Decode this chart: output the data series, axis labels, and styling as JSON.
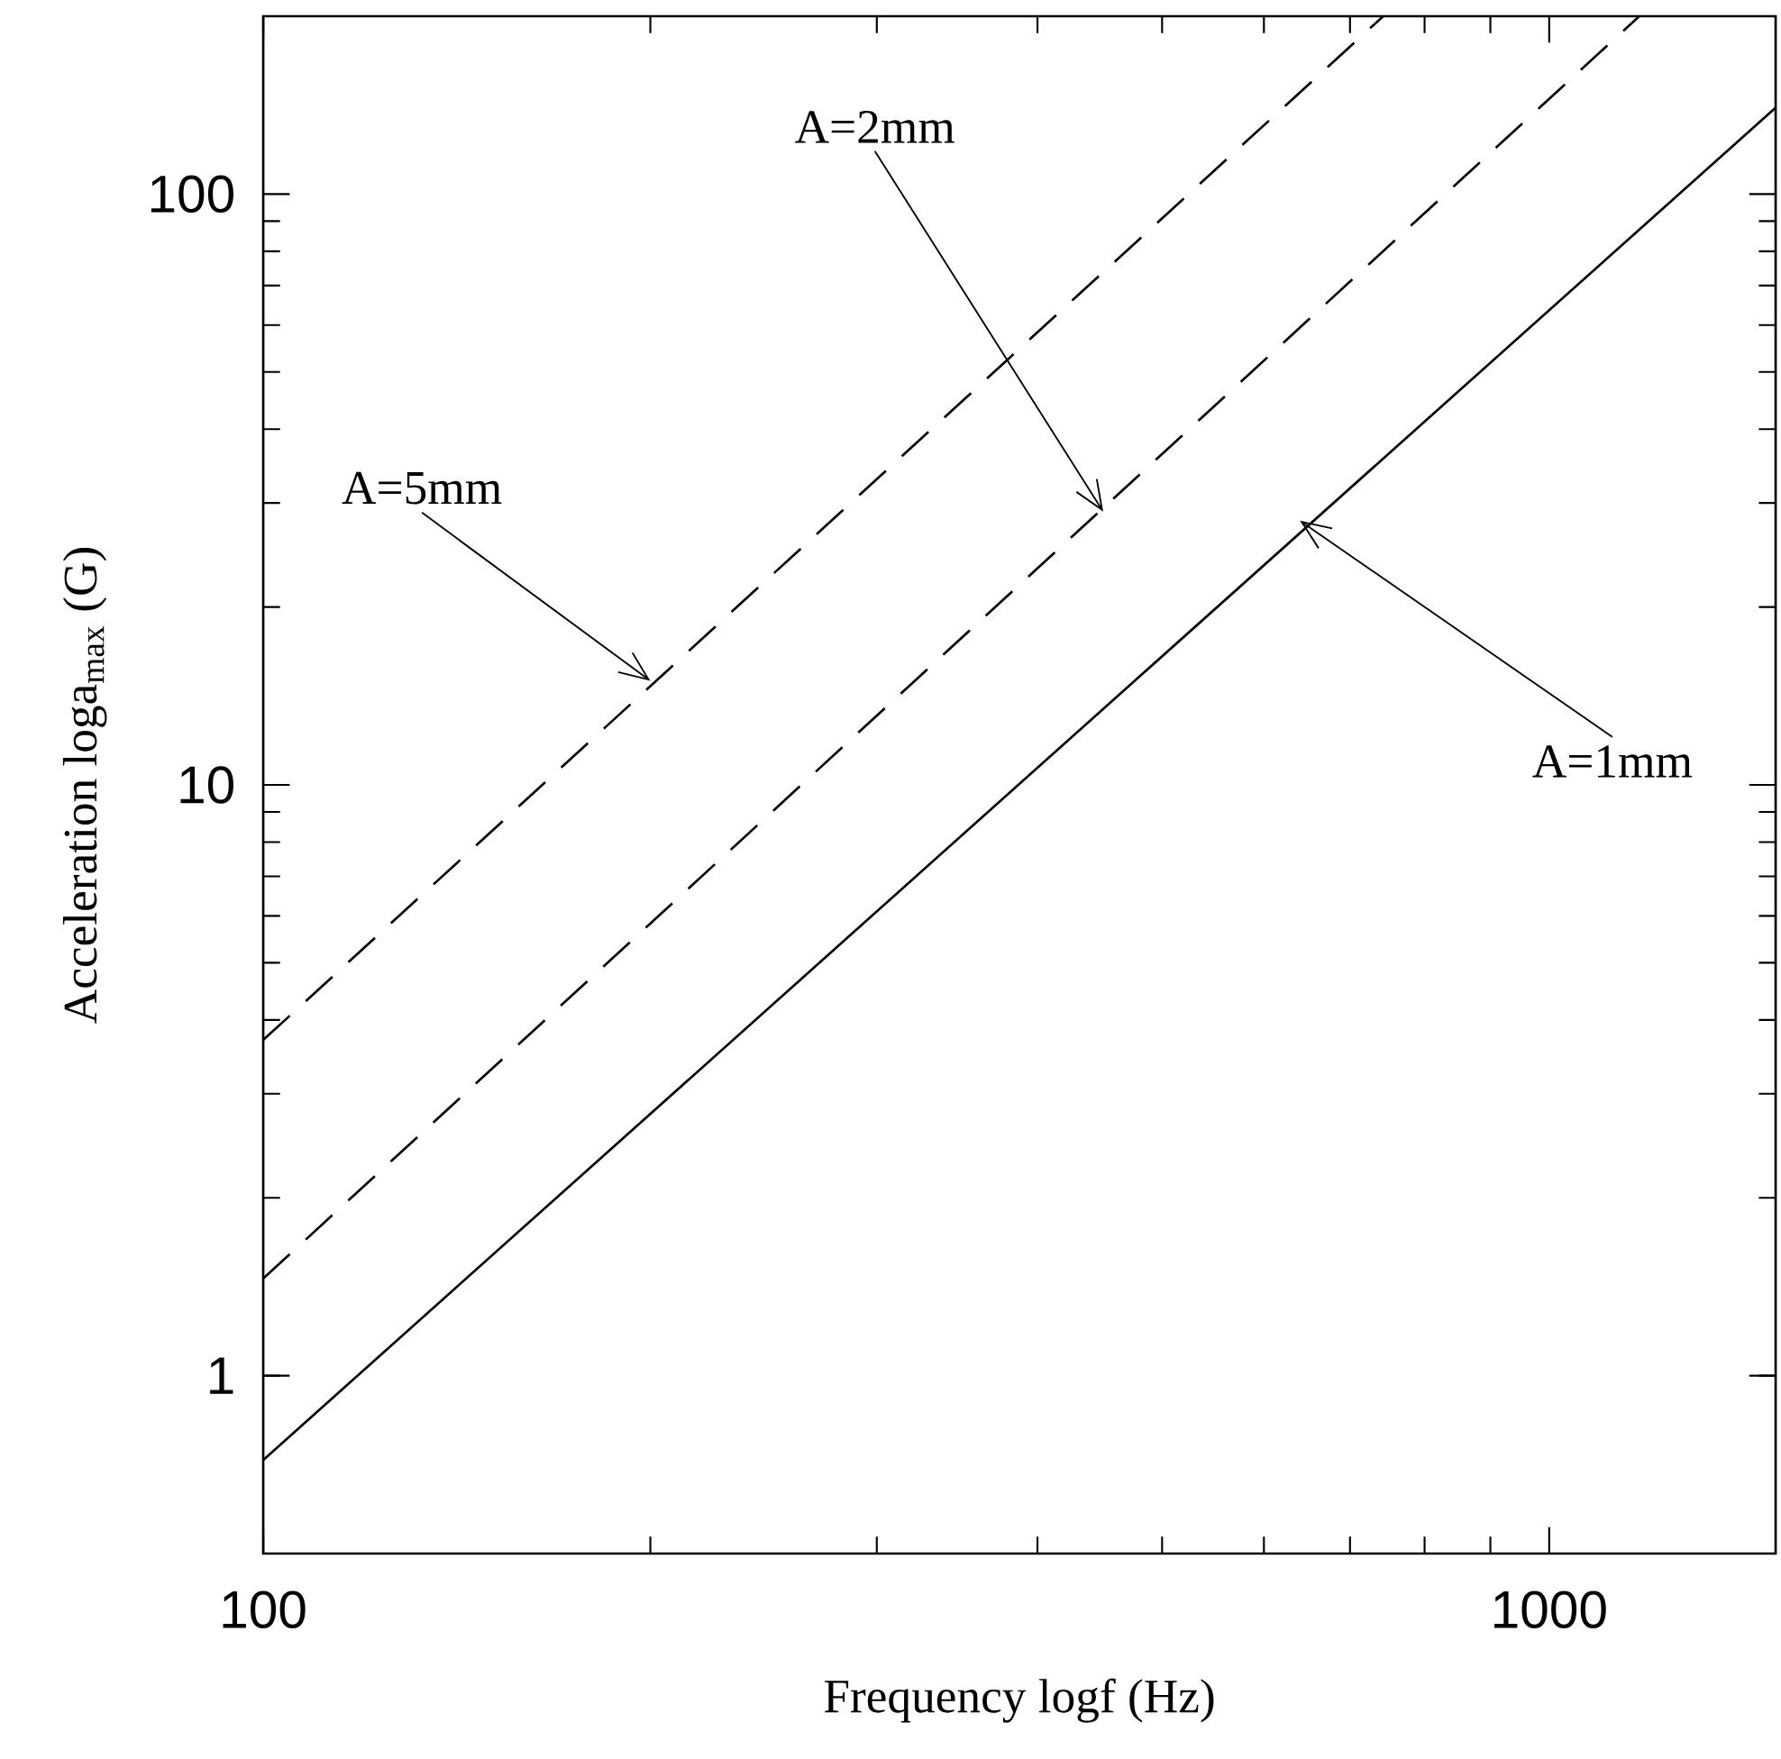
{
  "chart_data": {
    "type": "line",
    "xlabel": "Frequency logf (Hz)",
    "ylabel": "Acceleration loga$_{max}$  (G)",
    "log": "xy",
    "xlim": [
      100,
      1500
    ],
    "ylim": [
      0.5,
      200
    ],
    "xticks": [
      100,
      1000
    ],
    "yticks": [
      1,
      10,
      100
    ],
    "grid": false,
    "legend": false,
    "marker": "none",
    "series": [
      {
        "color": "#000000",
        "line_style": "solid",
        "x": [
          100,
          1500
        ],
        "values": [
          0.72,
          140
        ]
      },
      {
        "color": "#000000",
        "line_style": "dashed",
        "x": [
          100,
          1175
        ],
        "values": [
          1.46,
          200
        ]
      },
      {
        "color": "#000000",
        "line_style": "dashed",
        "x": [
          100,
          743
        ],
        "values": [
          3.7,
          200
        ]
      }
    ],
    "annotations": [
      {
        "text": "A=5mm",
        "x": 200,
        "y": 15
      },
      {
        "text": "A=2mm",
        "x": 450,
        "y": 29
      },
      {
        "text": "A=1mm",
        "x": 640,
        "y": 28
      }
    ]
  }
}
